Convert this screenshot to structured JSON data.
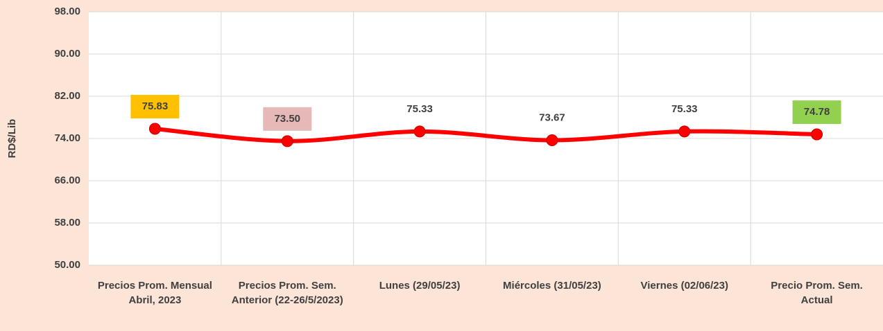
{
  "chart_data": {
    "type": "line",
    "y_label": "RD$/Lib",
    "categories": [
      "Precios Prom. Mensual Abril, 2023",
      "Precios Prom. Sem. Anterior (22-26/5/2023)",
      "Lunes  (29/05/23)",
      "Miércoles (31/05/23)",
      "Viernes  (02/06/23)",
      "Precio Prom. Sem. Actual"
    ],
    "values": [
      75.83,
      73.5,
      75.33,
      73.67,
      75.33,
      74.78
    ],
    "value_labels": [
      "75.83",
      "73.50",
      "75.33",
      "73.67",
      "75.33",
      "74.78"
    ],
    "value_label_colors": [
      "#ffc000",
      "#e6b8b7",
      "#ffffff",
      "#ffffff",
      "#ffffff",
      "#92d050"
    ],
    "color": "#ff0000",
    "ylim": [
      50,
      98
    ],
    "yticks": [
      {
        "value": 50,
        "label": "50.00"
      },
      {
        "value": 58,
        "label": "58.00"
      },
      {
        "value": 66,
        "label": "66.00"
      },
      {
        "value": 74,
        "label": "74.00"
      },
      {
        "value": 82,
        "label": "82.00"
      },
      {
        "value": 90,
        "label": "90.00"
      },
      {
        "value": 98,
        "label": "98.00"
      }
    ],
    "grid": true
  }
}
